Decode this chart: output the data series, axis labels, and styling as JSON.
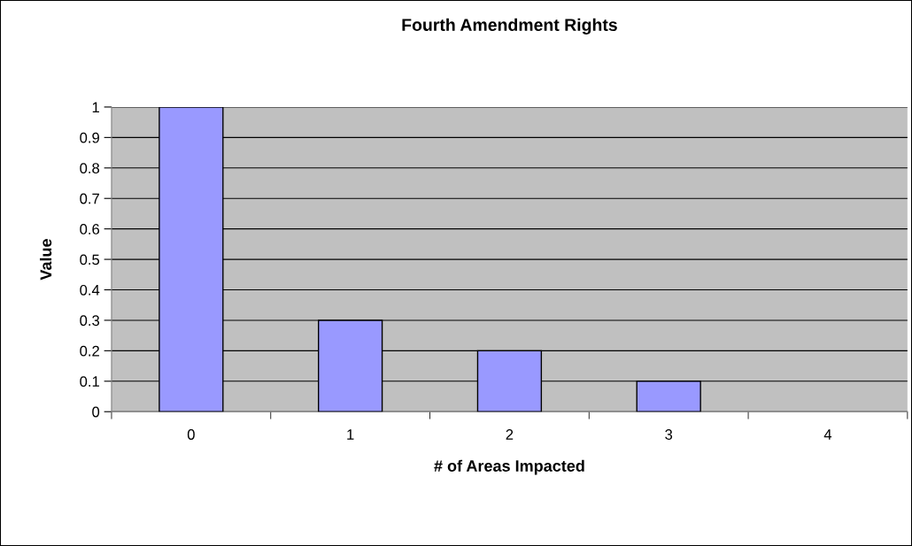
{
  "chart_data": {
    "type": "bar",
    "title": "Fourth Amendment Rights",
    "xlabel": "# of Areas Impacted",
    "ylabel": "Value",
    "categories": [
      "0",
      "1",
      "2",
      "3",
      "4"
    ],
    "values": [
      1,
      0.3,
      0.2,
      0.1,
      0
    ],
    "color": "#9999ff",
    "ylim": [
      0,
      1
    ],
    "yticks": [
      0,
      0.1,
      0.2,
      0.3,
      0.4,
      0.5,
      0.6,
      0.7,
      0.8,
      0.9,
      1
    ],
    "grid": "y"
  }
}
